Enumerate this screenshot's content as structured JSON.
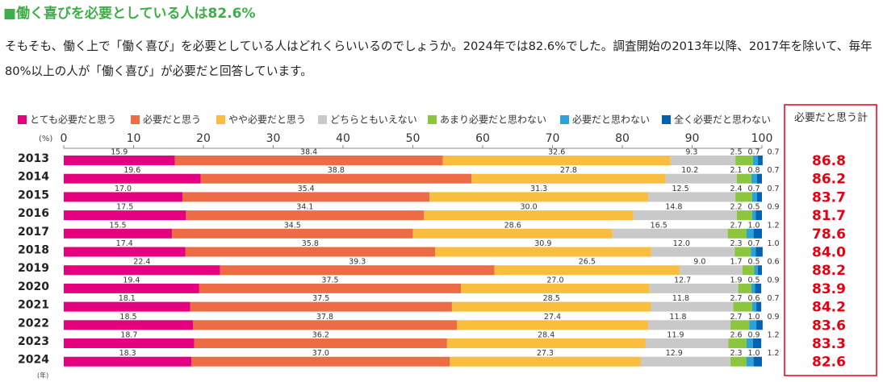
{
  "heading": "■働く喜びを必要としている人は82.6%",
  "intro": "そもそも、働く上で「働く喜び」を必要としている人はどれくらいいるのでしょうか。2024年では82.6%でした。調査開始の2013年以降、2017年を除いて、毎年80%以上の人が「働く喜び」が必要だと回答しています。",
  "chart_data": {
    "type": "stacked_bar_horizontal",
    "x_unit": "(%)",
    "y_unit": "(年)",
    "categories": [
      "2013",
      "2014",
      "2015",
      "2016",
      "2017",
      "2018",
      "2019",
      "2020",
      "2021",
      "2022",
      "2023",
      "2024"
    ],
    "xlim": [
      0,
      100
    ],
    "xticks": [
      0,
      10,
      20,
      30,
      40,
      50,
      60,
      70,
      80,
      90,
      100
    ],
    "series": [
      {
        "name": "とても必要だと思う",
        "color": "#e4007f",
        "values": [
          15.9,
          19.6,
          17.0,
          17.5,
          15.5,
          17.4,
          22.4,
          19.4,
          18.1,
          18.5,
          18.7,
          18.3
        ],
        "value_labels": [
          "15.9",
          "19.6",
          "17.0",
          "17.5",
          "15.5",
          "17.4",
          "22.4",
          "19.4",
          "18.1",
          "18.5",
          "18.7",
          "18.3"
        ]
      },
      {
        "name": "必要だと思う",
        "color": "#ee6c45",
        "values": [
          38.4,
          38.8,
          35.4,
          34.1,
          34.5,
          35.8,
          39.3,
          37.5,
          37.5,
          37.8,
          36.2,
          37.0
        ],
        "value_labels": [
          "38.4",
          "38.8",
          "35.4",
          "34.1",
          "34.5",
          "35.8",
          "39.3",
          "37.5",
          "37.5",
          "37.8",
          "36.2",
          "37.0"
        ]
      },
      {
        "name": "やや必要だと思う",
        "color": "#f9be3e",
        "values": [
          32.6,
          27.8,
          31.3,
          30.0,
          28.6,
          30.9,
          26.5,
          27.0,
          28.5,
          27.4,
          28.4,
          27.3
        ],
        "value_labels": [
          "32.6",
          "27.8",
          "31.3",
          "30.0",
          "28.6",
          "30.9",
          "26.5",
          "27.0",
          "28.5",
          "27.4",
          "28.4",
          "27.3"
        ]
      },
      {
        "name": "どちらともいえない",
        "color": "#c9c9c9",
        "values": [
          9.3,
          10.2,
          12.5,
          14.8,
          16.5,
          12.0,
          9.0,
          12.7,
          11.8,
          11.8,
          11.9,
          12.9
        ],
        "value_labels": [
          "9.3",
          "10.2",
          "12.5",
          "14.8",
          "16.5",
          "12.0",
          "9.0",
          "12.7",
          "11.8",
          "11.8",
          "11.9",
          "12.9"
        ]
      },
      {
        "name": "あまり必要だと思わない",
        "color": "#8cc63f",
        "values": [
          2.5,
          2.1,
          2.4,
          2.2,
          2.7,
          2.3,
          1.7,
          1.9,
          2.7,
          2.7,
          2.6,
          2.3
        ],
        "value_labels": [
          "2.5",
          "2.1",
          "2.4",
          "2.2",
          "2.7",
          "2.3",
          "1.7",
          "1.9",
          "2.7",
          "2.7",
          "2.6",
          "2.3"
        ]
      },
      {
        "name": "必要だと思わない",
        "color": "#29a3dc",
        "values": [
          0.7,
          0.8,
          0.7,
          0.5,
          1.0,
          0.7,
          0.5,
          0.5,
          0.6,
          1.0,
          0.9,
          1.0
        ],
        "value_labels": [
          "0.7",
          "0.8",
          "0.7",
          "0.5",
          "1.0",
          "0.7",
          "0.5",
          "0.5",
          "0.6",
          "1.0",
          "0.9",
          "1.0"
        ]
      },
      {
        "name": "全く必要だと思わない",
        "color": "#0062b1",
        "values": [
          0.7,
          0.7,
          0.7,
          0.9,
          1.2,
          1.0,
          0.6,
          0.9,
          0.7,
          0.9,
          1.2,
          1.2
        ],
        "value_labels": [
          "0.7",
          "0.7",
          "0.7",
          "0.9",
          "1.2",
          "1.0",
          "0.6",
          "0.9",
          "0.7",
          "0.9",
          "1.2",
          "1.2"
        ]
      }
    ],
    "totals": {
      "title": "必要だと思う計",
      "values": [
        86.8,
        86.2,
        83.7,
        81.7,
        78.6,
        84.0,
        88.2,
        83.9,
        84.2,
        83.6,
        83.3,
        82.6
      ],
      "value_labels": [
        "86.8",
        "86.2",
        "83.7",
        "81.7",
        "78.6",
        "84.0",
        "88.2",
        "83.9",
        "84.2",
        "83.6",
        "83.3",
        "82.6"
      ],
      "color": "#e60012"
    }
  }
}
